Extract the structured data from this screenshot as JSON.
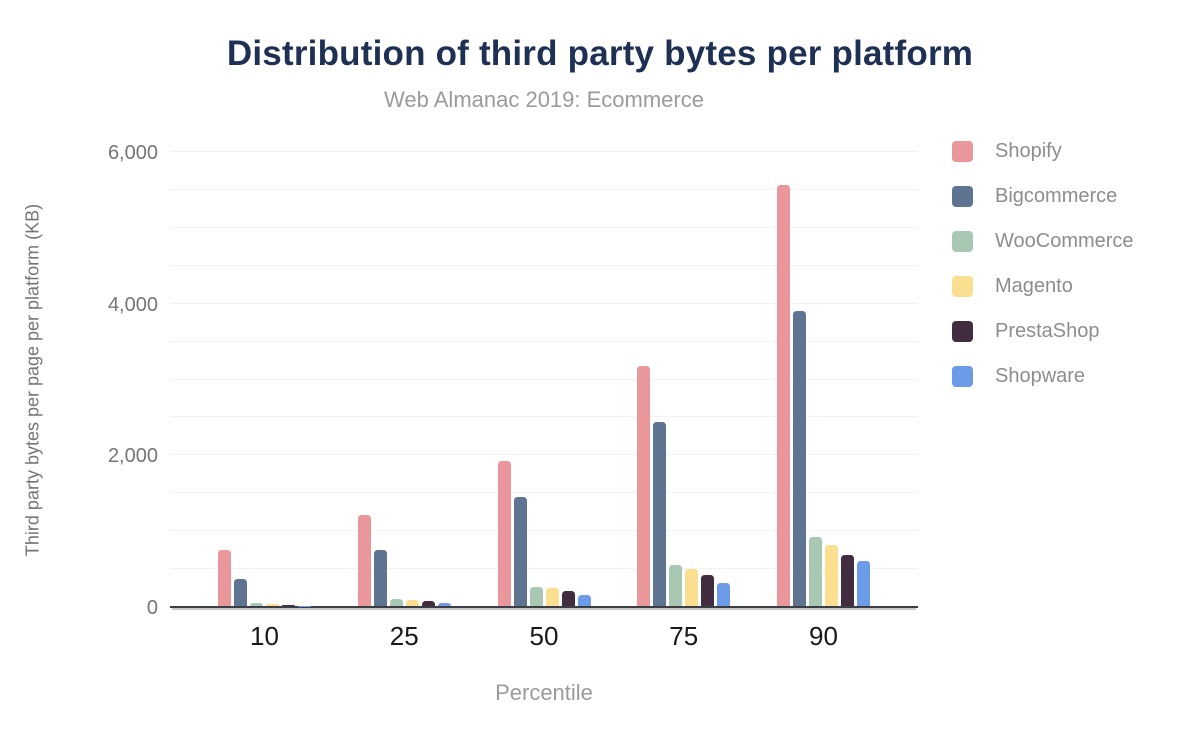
{
  "title": "Distribution of third party bytes per platform",
  "subtitle": "Web Almanac 2019: Ecommerce",
  "colors": {
    "title_navy": "#1e3154",
    "axis_text_gray": "#757575",
    "muted_text_gray": "#9b9b9b",
    "xtick_text_dark": "#17191d",
    "gridline_gray": "#f2f2f2",
    "baseline_dark": "#3b3f45"
  },
  "chart_data": {
    "type": "bar",
    "title": "Distribution of third party bytes per platform",
    "subtitle": "Web Almanac 2019: Ecommerce",
    "xlabel": "Percentile",
    "ylabel": "Third party bytes per page per platform (KB)",
    "categories": [
      "10",
      "25",
      "50",
      "75",
      "90"
    ],
    "series": [
      {
        "name": "Shopify",
        "color": "#e9979a",
        "values": [
          740,
          1200,
          1915,
          3170,
          5555
        ]
      },
      {
        "name": "Bigcommerce",
        "color": "#5e7491",
        "values": [
          355,
          740,
          1435,
          2420,
          3895
        ]
      },
      {
        "name": "WooCommerce",
        "color": "#a9c8b4",
        "values": [
          35,
          90,
          250,
          540,
          910
        ]
      },
      {
        "name": "Magento",
        "color": "#fbdf90",
        "values": [
          30,
          80,
          235,
          490,
          805
        ]
      },
      {
        "name": "PrestaShop",
        "color": "#422d40",
        "values": [
          10,
          70,
          200,
          410,
          670
        ]
      },
      {
        "name": "Shopware",
        "color": "#6c9ce8",
        "values": [
          5,
          40,
          145,
          305,
          595
        ]
      }
    ],
    "ylim": [
      0,
      6000
    ],
    "yticks": [
      {
        "label": "0",
        "value": 0
      },
      {
        "label": "2,000",
        "value": 2000
      },
      {
        "label": "4,000",
        "value": 4000
      },
      {
        "label": "6,000",
        "value": 6000
      }
    ],
    "gridline_step": 500,
    "grid": true,
    "legend_position": "right"
  }
}
